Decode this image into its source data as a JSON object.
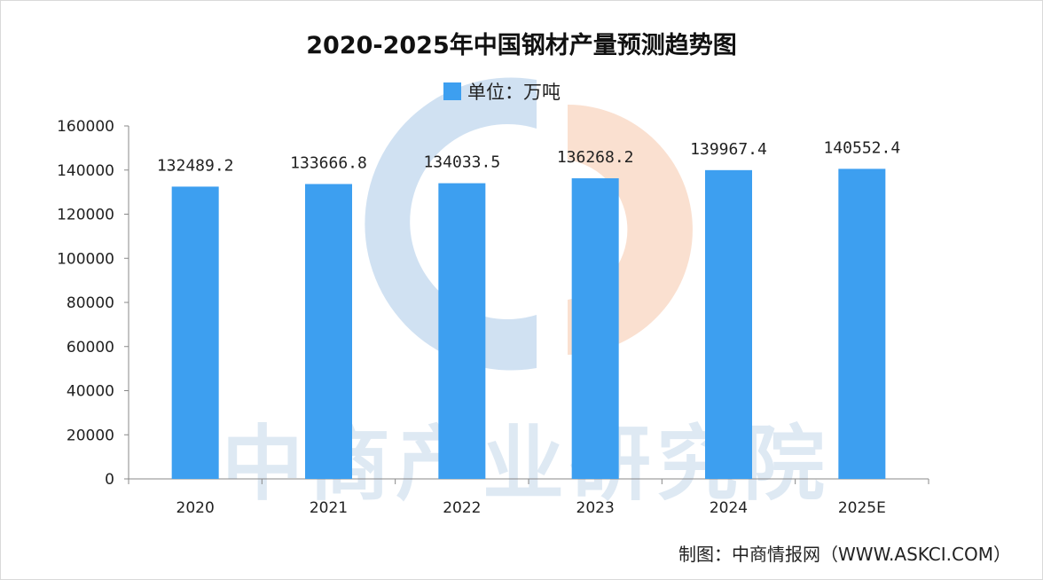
{
  "chart_data": {
    "type": "bar",
    "title": "2020-2025年中国钢材产量预测趋势图",
    "legend": {
      "label": "单位：万吨",
      "position": "top-center"
    },
    "categories": [
      "2020",
      "2021",
      "2022",
      "2023",
      "2024",
      "2025E"
    ],
    "series": [
      {
        "name": "单位：万吨",
        "values": [
          132489.2,
          133666.8,
          134033.5,
          136268.2,
          139967.4,
          140552.4
        ],
        "labels": [
          "132489.2",
          "133666.8",
          "134033.5",
          "136268.2",
          "139967.4",
          "140552.4"
        ]
      }
    ],
    "y_ticks": [
      "0",
      "20000",
      "40000",
      "60000",
      "80000",
      "100000",
      "120000",
      "140000",
      "160000"
    ],
    "ylim": [
      0,
      160000
    ],
    "grid": false,
    "xlabel": "",
    "ylabel": "",
    "bar_color": "#3d9ff0"
  },
  "source": "制图：中商情报网（WWW.ASKCI.COM）",
  "watermark": {
    "text": "中商产业研究院",
    "logo_colors": [
      "#a9c9e8",
      "#f5c7a9"
    ]
  }
}
